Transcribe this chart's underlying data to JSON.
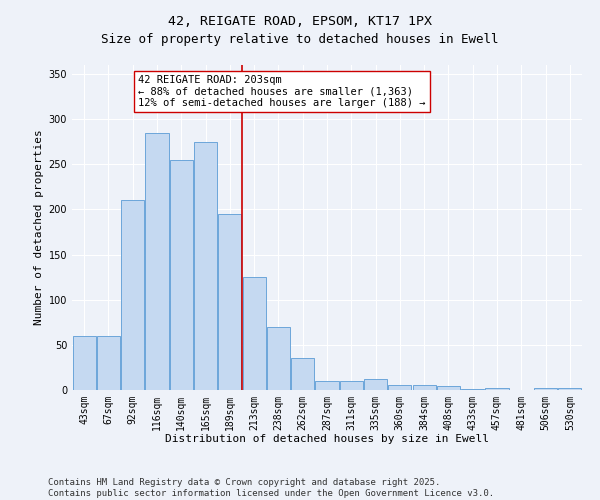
{
  "title": "42, REIGATE ROAD, EPSOM, KT17 1PX",
  "subtitle": "Size of property relative to detached houses in Ewell",
  "xlabel": "Distribution of detached houses by size in Ewell",
  "ylabel": "Number of detached properties",
  "categories": [
    "43sqm",
    "67sqm",
    "92sqm",
    "116sqm",
    "140sqm",
    "165sqm",
    "189sqm",
    "213sqm",
    "238sqm",
    "262sqm",
    "287sqm",
    "311sqm",
    "335sqm",
    "360sqm",
    "384sqm",
    "408sqm",
    "433sqm",
    "457sqm",
    "481sqm",
    "506sqm",
    "530sqm"
  ],
  "values": [
    60,
    60,
    210,
    285,
    255,
    275,
    195,
    125,
    70,
    35,
    10,
    10,
    12,
    6,
    5,
    4,
    1,
    2,
    0,
    2,
    2
  ],
  "bar_color": "#c5d9f1",
  "bar_edge_color": "#5b9bd5",
  "vline_color": "#cc0000",
  "annotation_text": "42 REIGATE ROAD: 203sqm\n← 88% of detached houses are smaller (1,363)\n12% of semi-detached houses are larger (188) →",
  "annotation_box_color": "#ffffff",
  "annotation_box_edge": "#cc0000",
  "ylim": [
    0,
    360
  ],
  "yticks": [
    0,
    50,
    100,
    150,
    200,
    250,
    300,
    350
  ],
  "background_color": "#eef2f9",
  "grid_color": "#ffffff",
  "footer": "Contains HM Land Registry data © Crown copyright and database right 2025.\nContains public sector information licensed under the Open Government Licence v3.0.",
  "title_fontsize": 9.5,
  "xlabel_fontsize": 8,
  "ylabel_fontsize": 8,
  "tick_fontsize": 7,
  "annotation_fontsize": 7.5,
  "footer_fontsize": 6.5,
  "vline_bar_index": 6
}
